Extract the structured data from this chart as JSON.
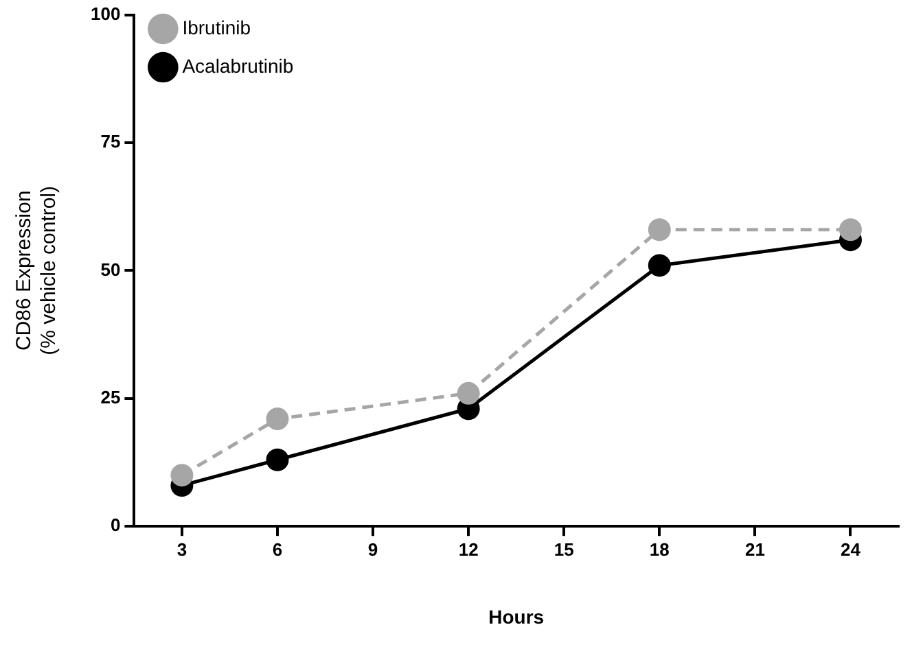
{
  "chart_data": {
    "type": "line",
    "xlabel": "Hours",
    "ylabel": "CD86 Expression\n(% vehicle control)",
    "x": [
      3,
      6,
      12,
      18,
      24
    ],
    "series": [
      {
        "name": "Ibrutinib",
        "color": "#a6a6a6",
        "line_style": "dashed",
        "values": [
          10,
          21,
          26,
          58,
          58
        ]
      },
      {
        "name": "Acalabrutinib",
        "color": "#000000",
        "line_style": "solid",
        "values": [
          8,
          13,
          23,
          51,
          56
        ]
      }
    ],
    "xlim": [
      1.5,
      25.5
    ],
    "xticks": [
      3,
      6,
      9,
      12,
      15,
      18,
      21,
      24
    ],
    "ylim": [
      0,
      100
    ],
    "yticks": [
      0,
      25,
      50,
      75,
      100
    ],
    "grid": false,
    "legend": "top left",
    "marker": "circle"
  }
}
